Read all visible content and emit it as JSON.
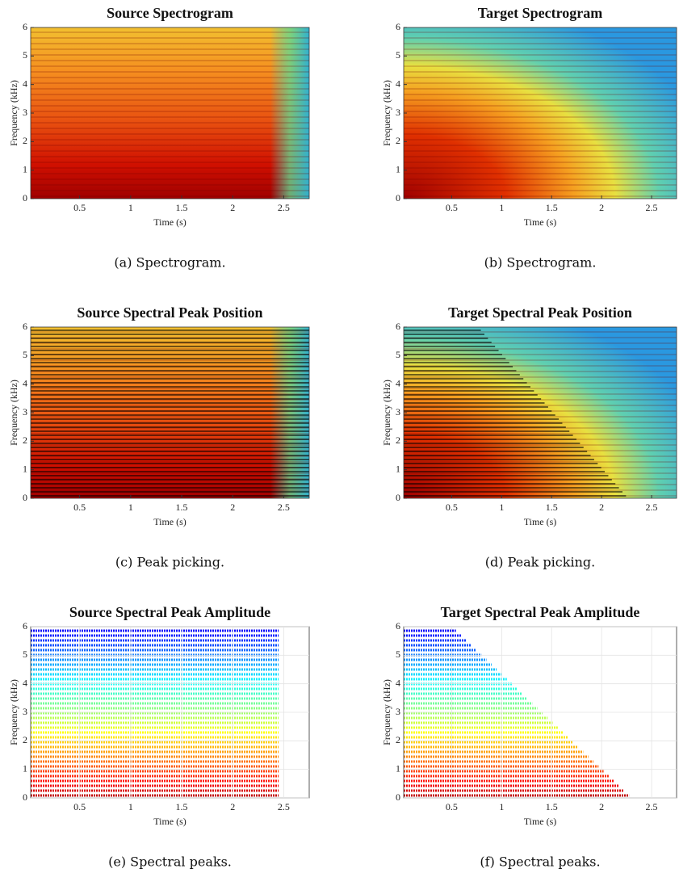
{
  "chart_data": [
    {
      "type": "spectrogram",
      "title": "Source Spectrogram",
      "x_label": "Time (s)",
      "y_label": "Frequency (kHz)",
      "caption": "(a) Spectrogram.",
      "xlim": [
        0.02,
        2.75
      ],
      "ylim": [
        0,
        6
      ],
      "xticks": [
        0.5,
        1,
        1.5,
        2,
        2.5
      ],
      "yticks": [
        0,
        1,
        2,
        3,
        4,
        5,
        6
      ],
      "grid": false
    },
    {
      "type": "spectrogram",
      "title": "Target Spectrogram",
      "x_label": "Time (s)",
      "y_label": "Frequency (kHz)",
      "caption": "(b) Spectrogram.",
      "xlim": [
        0.02,
        2.75
      ],
      "ylim": [
        0,
        6
      ],
      "xticks": [
        0.5,
        1,
        1.5,
        2,
        2.5
      ],
      "yticks": [
        0,
        1,
        2,
        3,
        4,
        5,
        6
      ],
      "grid": false
    },
    {
      "type": "peak-position",
      "title": "Source Spectral Peak Position",
      "x_label": "Time (s)",
      "y_label": "Frequency (kHz)",
      "caption": "(c) Peak picking.",
      "xlim": [
        0.02,
        2.75
      ],
      "ylim": [
        0,
        6
      ],
      "xticks": [
        0.5,
        1,
        1.5,
        2,
        2.5
      ],
      "yticks": [
        0,
        1,
        2,
        3,
        4,
        5,
        6
      ],
      "grid": false
    },
    {
      "type": "peak-position",
      "title": "Target Spectral Peak Position",
      "x_label": "Time (s)",
      "y_label": "Frequency (kHz)",
      "caption": "(d) Peak picking.",
      "xlim": [
        0.02,
        2.75
      ],
      "ylim": [
        0,
        6
      ],
      "xticks": [
        0.5,
        1,
        1.5,
        2,
        2.5
      ],
      "yticks": [
        0,
        1,
        2,
        3,
        4,
        5,
        6
      ],
      "grid": false
    },
    {
      "type": "peak-amplitude",
      "title": "Source Spectral Peak Amplitude",
      "x_label": "Time (s)",
      "y_label": "Frequency (kHz)",
      "caption": "(e) Spectral peaks.",
      "xlim": [
        0.02,
        2.75
      ],
      "ylim": [
        0,
        6
      ],
      "xticks": [
        0.5,
        1,
        1.5,
        2,
        2.5
      ],
      "yticks": [
        0,
        1,
        2,
        3,
        4,
        5,
        6
      ],
      "grid": true
    },
    {
      "type": "peak-amplitude",
      "title": "Target Spectral Peak Amplitude",
      "x_label": "Time (s)",
      "y_label": "Frequency (kHz)",
      "caption": "(f) Spectral peaks.",
      "xlim": [
        0.02,
        2.75
      ],
      "ylim": [
        0,
        6
      ],
      "xticks": [
        0.5,
        1,
        1.5,
        2,
        2.5
      ],
      "yticks": [
        0,
        1,
        2,
        3,
        4,
        5,
        6
      ],
      "grid": true
    }
  ]
}
